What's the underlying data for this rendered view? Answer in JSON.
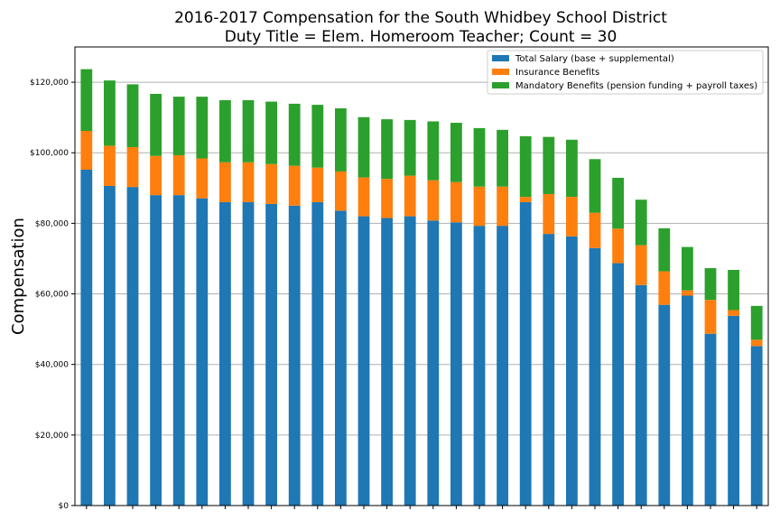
{
  "chart_data": {
    "type": "bar",
    "stacked": true,
    "title_lines": [
      "2016-2017 Compensation for the South Whidbey School District",
      "Duty Title = Elem. Homeroom Teacher; Count = 30"
    ],
    "xlabel": "",
    "ylabel": "Compensation",
    "ylim": [
      0,
      130000
    ],
    "yticks": [
      0,
      20000,
      40000,
      60000,
      80000,
      100000,
      120000
    ],
    "ytick_labels": [
      "$0",
      "$20,000",
      "$40,000",
      "$60,000",
      "$80,000",
      "$100,000",
      "$120,000"
    ],
    "grid": "horizontal",
    "legend_position": "top-right",
    "categories": [
      "",
      "",
      "",
      "",
      "",
      "",
      "",
      "",
      "",
      "",
      "",
      "",
      "",
      "",
      "",
      "",
      "",
      "",
      "",
      "",
      "",
      "",
      "",
      "",
      "",
      "",
      "",
      "",
      "",
      ""
    ],
    "series": [
      {
        "name": "Total Salary (base + supplemental)",
        "color": "#1f77b4",
        "values": [
          95200,
          90600,
          90300,
          88000,
          88000,
          87100,
          86000,
          86000,
          85500,
          85000,
          86000,
          83600,
          82000,
          81500,
          82000,
          80800,
          80300,
          79300,
          79300,
          86000,
          77000,
          76300,
          73000,
          68700,
          62500,
          56900,
          59500,
          48700,
          53800,
          45200
        ]
      },
      {
        "name": "Insurance Benefits",
        "color": "#ff7f0e",
        "values": [
          11000,
          11400,
          11300,
          11100,
          11300,
          11300,
          11300,
          11300,
          11300,
          11300,
          9800,
          11100,
          11000,
          11100,
          11500,
          11400,
          11400,
          11100,
          11100,
          1500,
          11300,
          11200,
          10000,
          9800,
          11300,
          9500,
          1500,
          9600,
          1600,
          1800
        ]
      },
      {
        "name": "Mandatory Benefits (pension funding + payroll taxes)",
        "color": "#2ca02c",
        "values": [
          17500,
          18500,
          17800,
          17600,
          16600,
          17500,
          17600,
          17600,
          17700,
          17600,
          17800,
          17900,
          17100,
          16900,
          15800,
          16700,
          16800,
          16600,
          16100,
          17200,
          16200,
          16200,
          15200,
          14400,
          12900,
          12200,
          12300,
          9000,
          11400,
          9600
        ]
      }
    ]
  }
}
